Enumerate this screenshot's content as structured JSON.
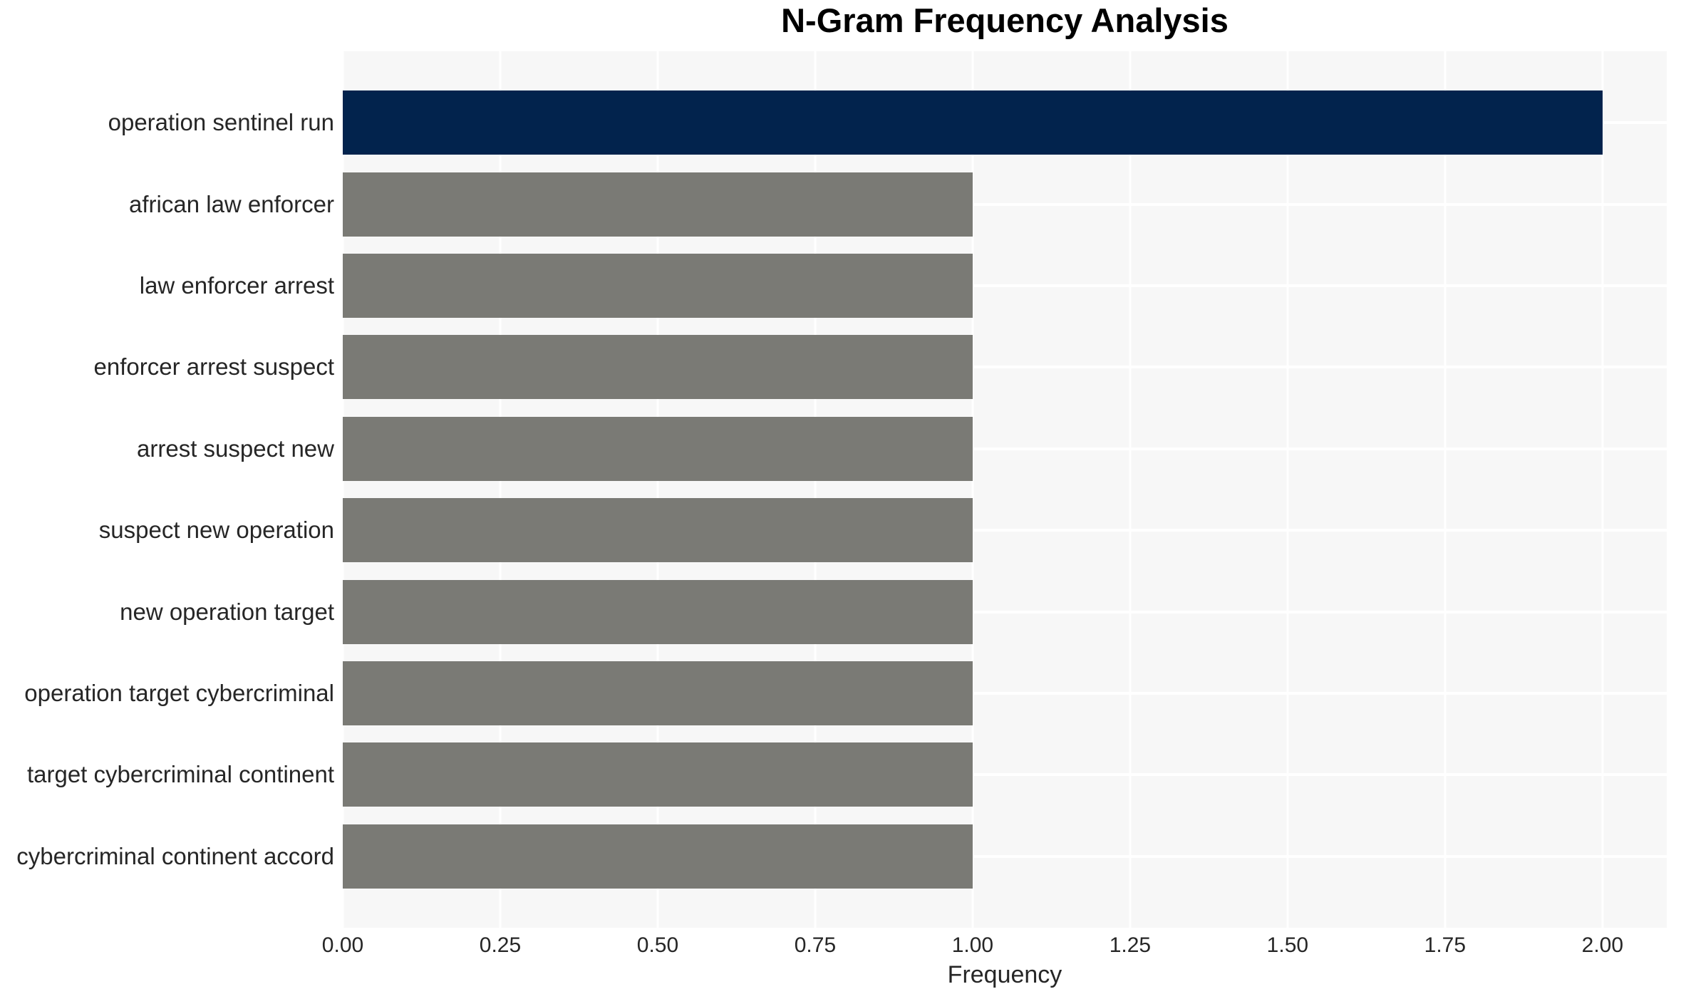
{
  "chart_data": {
    "type": "bar",
    "orientation": "horizontal",
    "title": "N-Gram Frequency Analysis",
    "xlabel": "Frequency",
    "ylabel": "",
    "categories": [
      "operation sentinel run",
      "african law enforcer",
      "law enforcer arrest",
      "enforcer arrest suspect",
      "arrest suspect new",
      "suspect new operation",
      "new operation target",
      "operation target cybercriminal",
      "target cybercriminal continent",
      "cybercriminal continent accord"
    ],
    "values": [
      2.0,
      1.0,
      1.0,
      1.0,
      1.0,
      1.0,
      1.0,
      1.0,
      1.0,
      1.0
    ],
    "xlim": [
      0,
      2.102
    ],
    "xticks": [
      0.0,
      0.25,
      0.5,
      0.75,
      1.0,
      1.25,
      1.5,
      1.75,
      2.0
    ],
    "xtick_labels": [
      "0.00",
      "0.25",
      "0.50",
      "0.75",
      "1.00",
      "1.25",
      "1.50",
      "1.75",
      "2.00"
    ],
    "grid": true,
    "legend": false,
    "colors": {
      "bar_highlight": "#02234d",
      "bar_default": "#7a7a75",
      "plot_background": "#f7f7f7",
      "gridline": "#ffffff",
      "axis_text": "#262626",
      "title_text": "#000000"
    }
  }
}
